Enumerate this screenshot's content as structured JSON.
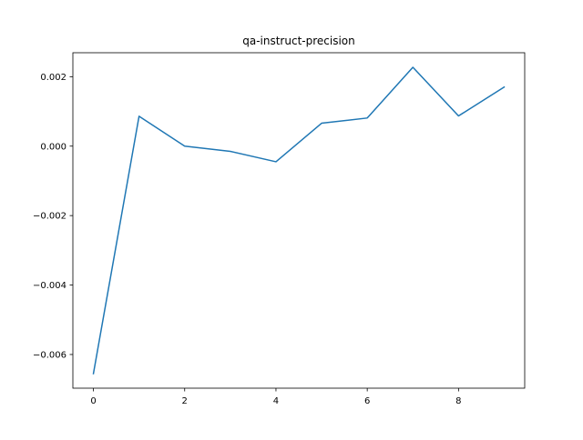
{
  "chart_data": {
    "type": "line",
    "title": "qa-instruct-precision",
    "xlabel": "",
    "ylabel": "",
    "x": [
      0,
      1,
      2,
      3,
      4,
      5,
      6,
      7,
      8,
      9
    ],
    "series": [
      {
        "color": "#1f77b4",
        "values": [
          -0.00655,
          0.00086,
          0.0,
          -0.00015,
          -0.00045,
          0.00066,
          0.00081,
          0.00227,
          0.00087,
          0.0017
        ]
      }
    ],
    "xlim": [
      -0.45,
      9.45
    ],
    "ylim": [
      -0.00697,
      0.00269
    ],
    "xticks": [
      0,
      2,
      4,
      6,
      8
    ],
    "xtick_labels": [
      "0",
      "2",
      "4",
      "6",
      "8"
    ],
    "yticks": [
      -0.006,
      -0.004,
      -0.002,
      0.0,
      0.002
    ],
    "ytick_labels": [
      "−0.006",
      "−0.004",
      "−0.002",
      "0.000",
      "0.002"
    ],
    "grid": false,
    "legend": "none"
  }
}
